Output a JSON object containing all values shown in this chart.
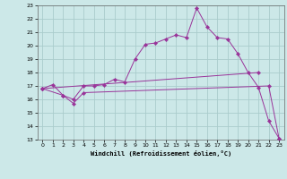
{
  "xlabel": "Windchill (Refroidissement éolien,°C)",
  "xlim": [
    -0.5,
    23.5
  ],
  "ylim": [
    13,
    23
  ],
  "xticks": [
    0,
    1,
    2,
    3,
    4,
    5,
    6,
    7,
    8,
    9,
    10,
    11,
    12,
    13,
    14,
    15,
    16,
    17,
    18,
    19,
    20,
    21,
    22,
    23
  ],
  "yticks": [
    13,
    14,
    15,
    16,
    17,
    18,
    19,
    20,
    21,
    22,
    23
  ],
  "bg_color": "#cce8e8",
  "line_color": "#993399",
  "grid_color": "#aacccc",
  "line1_x": [
    0,
    1,
    2,
    3,
    4,
    5,
    6,
    7,
    8,
    9,
    10,
    11,
    12,
    13,
    14,
    15,
    16,
    17,
    18,
    19,
    20,
    21,
    22,
    23
  ],
  "line1_y": [
    16.8,
    17.1,
    16.3,
    16.0,
    17.0,
    17.0,
    17.1,
    17.5,
    17.3,
    19.0,
    20.1,
    20.2,
    20.5,
    20.8,
    20.6,
    22.8,
    21.4,
    20.6,
    20.5,
    19.4,
    18.0,
    16.9,
    14.4,
    13.1
  ],
  "line2_x": [
    0,
    2,
    3,
    4,
    22,
    23
  ],
  "line2_y": [
    16.8,
    16.3,
    15.7,
    16.5,
    17.0,
    13.1
  ],
  "line3_x": [
    0,
    21
  ],
  "line3_y": [
    16.8,
    18.0
  ]
}
